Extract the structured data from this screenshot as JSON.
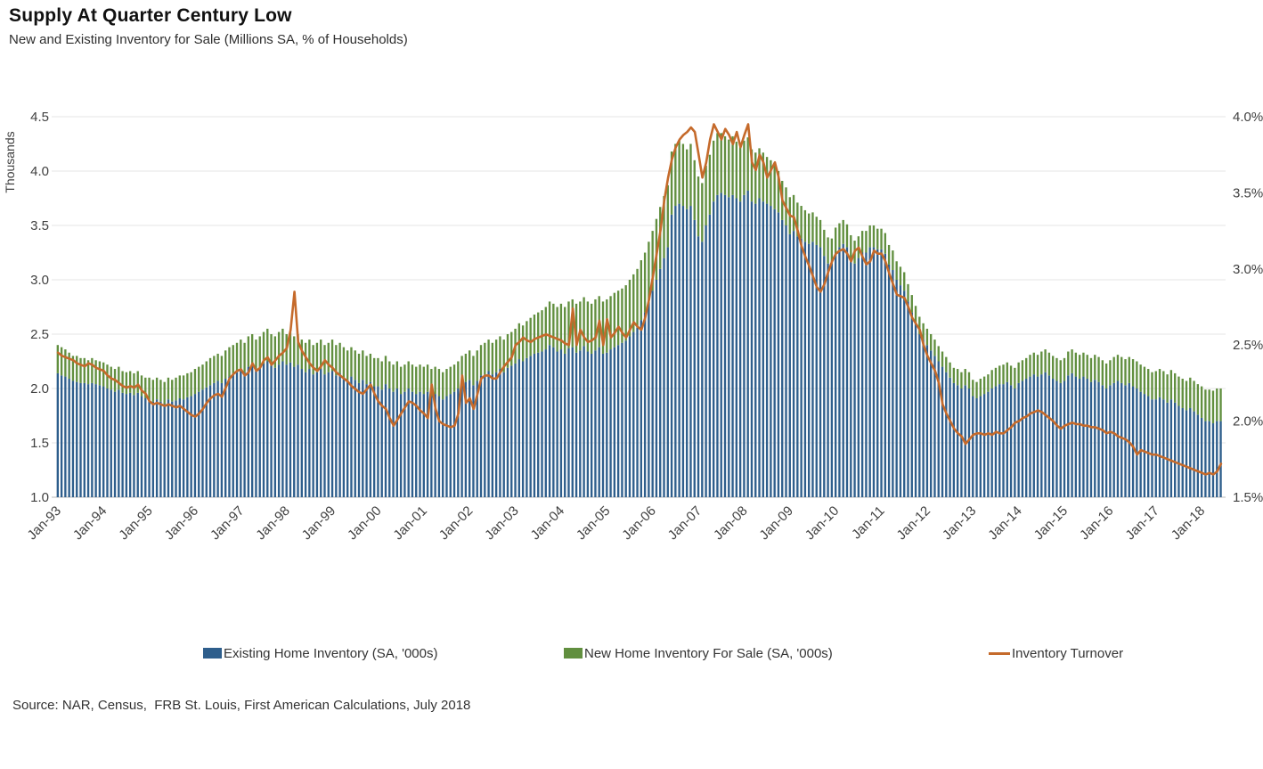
{
  "title": "Supply At Quarter Century Low",
  "subtitle": "New and Existing Inventory for Sale (Millions SA, % of Households)",
  "source": "Source: NAR, Census,  FRB St. Louis, First American Calculations, July 2018",
  "colors": {
    "existing_bar": "#2E5E8C",
    "new_bar": "#618F3F",
    "turnover_line": "#C56A2B",
    "gridline": "#e4e4e4",
    "axis_line": "#c8c8c8",
    "label_text": "#404040"
  },
  "chart_data": {
    "type": "bar",
    "subtype": "stacked-bars-with-line-overlay",
    "frequency": "monthly",
    "x_start": "Jan-93",
    "x_end": "Jun-18",
    "x_tick_labels": [
      "Jan-93",
      "Jan-94",
      "Jan-95",
      "Jan-96",
      "Jan-97",
      "Jan-98",
      "Jan-99",
      "Jan-00",
      "Jan-01",
      "Jan-02",
      "Jan-03",
      "Jan-04",
      "Jan-05",
      "Jan-06",
      "Jan-07",
      "Jan-08",
      "Jan-09",
      "Jan-10",
      "Jan-11",
      "Jan-12",
      "Jan-13",
      "Jan-14",
      "Jan-15",
      "Jan-16",
      "Jan-17",
      "Jan-18"
    ],
    "left_axis": {
      "label": "Thousands",
      "range": [
        1.0,
        4.5
      ],
      "tick_values": [
        4.5,
        4.0,
        3.5,
        3.0,
        2.5,
        2.0,
        1.5,
        1.0
      ],
      "tick_labels": [
        "4.5",
        "4.0",
        "3.5",
        "3.0",
        "2.5",
        "2.0",
        "1.5",
        "1.0"
      ]
    },
    "right_axis": {
      "range": [
        1.5,
        4.0
      ],
      "tick_values": [
        4.0,
        3.5,
        3.0,
        2.5,
        2.0,
        1.5
      ],
      "tick_labels": [
        "4.0%",
        "3.5%",
        "3.0%",
        "2.5%",
        "2.0%",
        "1.5%"
      ]
    },
    "grid": true,
    "legend_position": "bottom",
    "series": [
      {
        "name": "Existing Home Inventory (SA, '000s)",
        "type": "bar",
        "stack": "inventory",
        "axis": "left",
        "color": "#2E5E8C",
        "values": [
          2.14,
          2.12,
          2.11,
          2.09,
          2.07,
          2.06,
          2.05,
          2.05,
          2.04,
          2.05,
          2.04,
          2.03,
          2.02,
          2.0,
          1.99,
          1.97,
          1.99,
          1.96,
          1.95,
          1.96,
          1.94,
          1.96,
          1.93,
          1.91,
          1.9,
          1.88,
          1.9,
          1.88,
          1.86,
          1.9,
          1.88,
          1.89,
          1.91,
          1.9,
          1.92,
          1.93,
          1.95,
          1.97,
          1.99,
          2.01,
          2.03,
          2.05,
          2.07,
          2.05,
          2.09,
          2.11,
          2.13,
          2.15,
          2.17,
          2.15,
          2.2,
          2.21,
          2.17,
          2.19,
          2.23,
          2.25,
          2.21,
          2.19,
          2.22,
          2.25,
          2.22,
          2.24,
          2.2,
          2.22,
          2.18,
          2.15,
          2.18,
          2.13,
          2.15,
          2.18,
          2.13,
          2.15,
          2.16,
          2.12,
          2.14,
          2.1,
          2.08,
          2.11,
          2.08,
          2.05,
          2.08,
          2.04,
          2.06,
          2.02,
          2.02,
          1.99,
          2.04,
          2.0,
          1.97,
          2.0,
          1.95,
          1.97,
          2.0,
          1.97,
          1.95,
          1.97,
          1.95,
          1.97,
          1.93,
          1.95,
          1.93,
          1.9,
          1.93,
          1.95,
          1.97,
          2.0,
          2.04,
          2.06,
          2.08,
          2.03,
          2.07,
          2.12,
          2.13,
          2.16,
          2.13,
          2.15,
          2.18,
          2.15,
          2.19,
          2.21,
          2.23,
          2.27,
          2.25,
          2.28,
          2.3,
          2.32,
          2.33,
          2.34,
          2.36,
          2.4,
          2.38,
          2.34,
          2.36,
          2.32,
          2.37,
          2.38,
          2.33,
          2.35,
          2.39,
          2.34,
          2.32,
          2.35,
          2.38,
          2.32,
          2.33,
          2.36,
          2.38,
          2.4,
          2.42,
          2.44,
          2.48,
          2.52,
          2.56,
          2.63,
          2.7,
          2.8,
          2.9,
          3.0,
          3.1,
          3.2,
          3.3,
          3.6,
          3.68,
          3.7,
          3.68,
          3.65,
          3.68,
          3.55,
          3.4,
          3.35,
          3.5,
          3.6,
          3.72,
          3.78,
          3.8,
          3.78,
          3.76,
          3.78,
          3.75,
          3.72,
          3.78,
          3.82,
          3.72,
          3.7,
          3.75,
          3.72,
          3.7,
          3.68,
          3.65,
          3.62,
          3.55,
          3.5,
          3.42,
          3.45,
          3.4,
          3.38,
          3.35,
          3.33,
          3.35,
          3.32,
          3.3,
          3.22,
          3.15,
          3.15,
          3.25,
          3.3,
          3.33,
          3.3,
          3.2,
          3.15,
          3.2,
          3.25,
          3.25,
          3.3,
          3.3,
          3.28,
          3.28,
          3.24,
          3.14,
          3.09,
          3.0,
          2.95,
          2.9,
          2.8,
          2.7,
          2.6,
          2.5,
          2.45,
          2.4,
          2.35,
          2.3,
          2.25,
          2.2,
          2.15,
          2.1,
          2.05,
          2.03,
          2.0,
          2.03,
          2.0,
          1.93,
          1.91,
          1.93,
          1.95,
          1.97,
          2.0,
          2.02,
          2.04,
          2.04,
          2.06,
          2.03,
          2.0,
          2.05,
          2.07,
          2.09,
          2.11,
          2.13,
          2.11,
          2.13,
          2.15,
          2.12,
          2.09,
          2.07,
          2.05,
          2.07,
          2.12,
          2.14,
          2.11,
          2.09,
          2.11,
          2.09,
          2.06,
          2.08,
          2.06,
          2.03,
          2.0,
          2.03,
          2.05,
          2.07,
          2.05,
          2.03,
          2.05,
          2.02,
          2.0,
          1.97,
          1.95,
          1.93,
          1.9,
          1.9,
          1.92,
          1.9,
          1.87,
          1.9,
          1.87,
          1.84,
          1.82,
          1.8,
          1.82,
          1.79,
          1.76,
          1.73,
          1.7,
          1.7,
          1.68,
          1.7,
          1.7
        ]
      },
      {
        "name": "New Home Inventory For Sale (SA, '000s)",
        "type": "bar",
        "stack": "inventory",
        "axis": "left",
        "color": "#618F3F",
        "values": [
          0.26,
          0.26,
          0.25,
          0.24,
          0.23,
          0.24,
          0.23,
          0.23,
          0.22,
          0.23,
          0.22,
          0.22,
          0.22,
          0.22,
          0.21,
          0.21,
          0.21,
          0.2,
          0.2,
          0.2,
          0.2,
          0.2,
          0.19,
          0.19,
          0.2,
          0.2,
          0.2,
          0.2,
          0.2,
          0.2,
          0.2,
          0.21,
          0.21,
          0.22,
          0.22,
          0.22,
          0.23,
          0.23,
          0.23,
          0.24,
          0.25,
          0.25,
          0.25,
          0.25,
          0.26,
          0.27,
          0.27,
          0.27,
          0.28,
          0.27,
          0.28,
          0.29,
          0.28,
          0.29,
          0.29,
          0.3,
          0.29,
          0.29,
          0.3,
          0.3,
          0.28,
          0.28,
          0.28,
          0.28,
          0.27,
          0.27,
          0.27,
          0.27,
          0.27,
          0.27,
          0.27,
          0.27,
          0.29,
          0.28,
          0.28,
          0.28,
          0.27,
          0.27,
          0.27,
          0.27,
          0.27,
          0.26,
          0.26,
          0.26,
          0.26,
          0.26,
          0.26,
          0.25,
          0.25,
          0.25,
          0.25,
          0.25,
          0.25,
          0.25,
          0.25,
          0.25,
          0.25,
          0.25,
          0.25,
          0.25,
          0.25,
          0.25,
          0.25,
          0.25,
          0.25,
          0.25,
          0.26,
          0.26,
          0.27,
          0.27,
          0.28,
          0.28,
          0.29,
          0.29,
          0.29,
          0.3,
          0.3,
          0.3,
          0.31,
          0.31,
          0.32,
          0.33,
          0.33,
          0.34,
          0.35,
          0.36,
          0.37,
          0.38,
          0.39,
          0.4,
          0.4,
          0.41,
          0.42,
          0.43,
          0.43,
          0.44,
          0.45,
          0.45,
          0.45,
          0.46,
          0.46,
          0.47,
          0.47,
          0.48,
          0.49,
          0.49,
          0.5,
          0.5,
          0.5,
          0.51,
          0.52,
          0.53,
          0.54,
          0.55,
          0.55,
          0.55,
          0.55,
          0.56,
          0.57,
          0.57,
          0.57,
          0.58,
          0.57,
          0.58,
          0.57,
          0.55,
          0.57,
          0.55,
          0.55,
          0.54,
          0.55,
          0.55,
          0.56,
          0.57,
          0.55,
          0.54,
          0.53,
          0.54,
          0.52,
          0.5,
          0.5,
          0.49,
          0.48,
          0.47,
          0.46,
          0.45,
          0.43,
          0.42,
          0.4,
          0.38,
          0.36,
          0.35,
          0.34,
          0.33,
          0.31,
          0.3,
          0.29,
          0.28,
          0.27,
          0.26,
          0.25,
          0.24,
          0.24,
          0.23,
          0.23,
          0.22,
          0.22,
          0.21,
          0.21,
          0.21,
          0.2,
          0.2,
          0.2,
          0.2,
          0.2,
          0.19,
          0.19,
          0.19,
          0.18,
          0.18,
          0.17,
          0.17,
          0.17,
          0.16,
          0.16,
          0.16,
          0.16,
          0.15,
          0.15,
          0.15,
          0.15,
          0.14,
          0.14,
          0.14,
          0.14,
          0.14,
          0.15,
          0.15,
          0.15,
          0.15,
          0.15,
          0.15,
          0.16,
          0.16,
          0.16,
          0.17,
          0.17,
          0.17,
          0.18,
          0.18,
          0.18,
          0.19,
          0.19,
          0.19,
          0.19,
          0.2,
          0.2,
          0.2,
          0.21,
          0.21,
          0.21,
          0.21,
          0.21,
          0.21,
          0.21,
          0.22,
          0.22,
          0.22,
          0.22,
          0.22,
          0.22,
          0.22,
          0.23,
          0.23,
          0.23,
          0.23,
          0.23,
          0.24,
          0.24,
          0.24,
          0.24,
          0.24,
          0.25,
          0.25,
          0.25,
          0.25,
          0.25,
          0.25,
          0.26,
          0.26,
          0.26,
          0.26,
          0.27,
          0.27,
          0.27,
          0.27,
          0.27,
          0.28,
          0.28,
          0.28,
          0.29,
          0.29,
          0.29,
          0.3,
          0.3,
          0.3
        ]
      },
      {
        "name": "Inventory Turnover",
        "type": "line",
        "axis": "right",
        "color": "#C56A2B",
        "values": [
          2.45,
          2.43,
          2.42,
          2.41,
          2.4,
          2.38,
          2.37,
          2.36,
          2.38,
          2.37,
          2.35,
          2.34,
          2.33,
          2.3,
          2.28,
          2.27,
          2.25,
          2.23,
          2.22,
          2.23,
          2.22,
          2.24,
          2.2,
          2.18,
          2.13,
          2.11,
          2.12,
          2.11,
          2.1,
          2.11,
          2.1,
          2.09,
          2.1,
          2.08,
          2.06,
          2.04,
          2.03,
          2.05,
          2.08,
          2.12,
          2.15,
          2.17,
          2.18,
          2.16,
          2.22,
          2.28,
          2.31,
          2.33,
          2.34,
          2.3,
          2.32,
          2.38,
          2.33,
          2.35,
          2.4,
          2.42,
          2.37,
          2.4,
          2.43,
          2.45,
          2.48,
          2.6,
          2.85,
          2.52,
          2.46,
          2.42,
          2.38,
          2.35,
          2.33,
          2.36,
          2.4,
          2.37,
          2.35,
          2.32,
          2.3,
          2.28,
          2.26,
          2.23,
          2.21,
          2.19,
          2.18,
          2.21,
          2.24,
          2.18,
          2.13,
          2.1,
          2.08,
          2.02,
          1.97,
          2.01,
          2.05,
          2.09,
          2.13,
          2.12,
          2.1,
          2.07,
          2.05,
          2.02,
          2.24,
          2.08,
          2.0,
          1.98,
          1.97,
          1.96,
          1.97,
          2.05,
          2.3,
          2.12,
          2.15,
          2.08,
          2.18,
          2.28,
          2.3,
          2.3,
          2.28,
          2.28,
          2.32,
          2.36,
          2.39,
          2.42,
          2.5,
          2.52,
          2.55,
          2.53,
          2.52,
          2.54,
          2.55,
          2.56,
          2.57,
          2.56,
          2.55,
          2.54,
          2.53,
          2.51,
          2.5,
          2.74,
          2.5,
          2.6,
          2.55,
          2.52,
          2.53,
          2.55,
          2.66,
          2.5,
          2.67,
          2.55,
          2.58,
          2.62,
          2.58,
          2.55,
          2.6,
          2.65,
          2.62,
          2.6,
          2.68,
          2.8,
          2.95,
          3.1,
          3.25,
          3.45,
          3.6,
          3.72,
          3.8,
          3.85,
          3.88,
          3.9,
          3.93,
          3.9,
          3.75,
          3.6,
          3.7,
          3.85,
          3.95,
          3.9,
          3.85,
          3.92,
          3.88,
          3.82,
          3.9,
          3.8,
          3.88,
          3.95,
          3.7,
          3.65,
          3.75,
          3.7,
          3.6,
          3.65,
          3.7,
          3.6,
          3.45,
          3.4,
          3.35,
          3.34,
          3.25,
          3.15,
          3.08,
          3.02,
          2.95,
          2.88,
          2.85,
          2.9,
          2.98,
          3.05,
          3.1,
          3.12,
          3.13,
          3.1,
          3.05,
          3.12,
          3.14,
          3.08,
          3.03,
          3.05,
          3.12,
          3.1,
          3.1,
          3.05,
          2.97,
          2.9,
          2.83,
          2.82,
          2.81,
          2.75,
          2.68,
          2.64,
          2.6,
          2.5,
          2.43,
          2.38,
          2.33,
          2.25,
          2.11,
          2.05,
          2.0,
          1.95,
          1.92,
          1.9,
          1.85,
          1.88,
          1.91,
          1.92,
          1.92,
          1.91,
          1.92,
          1.91,
          1.93,
          1.92,
          1.92,
          1.94,
          1.96,
          1.99,
          2.0,
          2.02,
          2.03,
          2.05,
          2.06,
          2.07,
          2.06,
          2.04,
          2.02,
          2.0,
          1.97,
          1.95,
          1.97,
          1.98,
          1.99,
          1.98,
          1.98,
          1.97,
          1.97,
          1.96,
          1.96,
          1.95,
          1.94,
          1.92,
          1.93,
          1.92,
          1.9,
          1.89,
          1.88,
          1.86,
          1.83,
          1.78,
          1.81,
          1.8,
          1.79,
          1.78,
          1.78,
          1.77,
          1.76,
          1.75,
          1.74,
          1.73,
          1.72,
          1.71,
          1.7,
          1.69,
          1.68,
          1.67,
          1.66,
          1.65,
          1.66,
          1.65,
          1.67,
          1.72
        ]
      }
    ]
  }
}
